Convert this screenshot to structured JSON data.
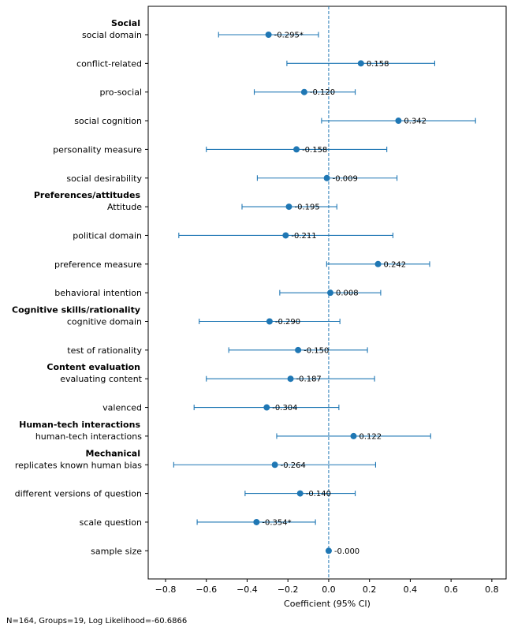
{
  "chart_data": {
    "type": "scatter",
    "subtype": "coefficient-plot-with-error-bars",
    "xlabel": "Coefficient (95% CI)",
    "xlim": [
      -0.885,
      0.87
    ],
    "xticks": [
      -0.8,
      -0.6,
      -0.4,
      -0.2,
      0.0,
      0.2,
      0.4,
      0.6,
      0.8
    ],
    "xtick_labels": [
      "−0.8",
      "−0.6",
      "−0.4",
      "−0.2",
      "0.0",
      "0.2",
      "0.4",
      "0.6",
      "0.8"
    ],
    "reference_line": 0.0,
    "footnote": "N=164, Groups=19, Log Likelihood=-60.6866",
    "marker_color": "#1f77b4",
    "rows": [
      {
        "group": "Social",
        "label": "social domain",
        "coef": -0.295,
        "lo": -0.54,
        "hi": -0.05,
        "annotation": "-0.295*"
      },
      {
        "group": "",
        "label": "conflict-related",
        "coef": 0.158,
        "lo": -0.205,
        "hi": 0.52,
        "annotation": "0.158"
      },
      {
        "group": "",
        "label": "pro-social",
        "coef": -0.12,
        "lo": -0.365,
        "hi": 0.13,
        "annotation": "-0.120"
      },
      {
        "group": "",
        "label": "social cognition",
        "coef": 0.342,
        "lo": -0.035,
        "hi": 0.72,
        "annotation": "0.342"
      },
      {
        "group": "",
        "label": "personality measure",
        "coef": -0.158,
        "lo": -0.6,
        "hi": 0.285,
        "annotation": "-0.158"
      },
      {
        "group": "",
        "label": "social desirability",
        "coef": -0.009,
        "lo": -0.35,
        "hi": 0.335,
        "annotation": "-0.009"
      },
      {
        "group": "Preferences/attitudes",
        "label": "Attitude",
        "coef": -0.195,
        "lo": -0.425,
        "hi": 0.04,
        "annotation": "-0.195"
      },
      {
        "group": "",
        "label": "political domain",
        "coef": -0.211,
        "lo": -0.735,
        "hi": 0.315,
        "annotation": "-0.211"
      },
      {
        "group": "",
        "label": "preference measure",
        "coef": 0.242,
        "lo": -0.01,
        "hi": 0.495,
        "annotation": "0.242"
      },
      {
        "group": "",
        "label": "behavioral intention",
        "coef": 0.008,
        "lo": -0.24,
        "hi": 0.255,
        "annotation": "0.008"
      },
      {
        "group": "Cognitive skills/rationality",
        "label": "cognitive domain",
        "coef": -0.29,
        "lo": -0.635,
        "hi": 0.055,
        "annotation": "-0.290"
      },
      {
        "group": "",
        "label": "test of rationality",
        "coef": -0.15,
        "lo": -0.49,
        "hi": 0.19,
        "annotation": "-0.150"
      },
      {
        "group": "Content evaluation",
        "label": "evaluating content",
        "coef": -0.187,
        "lo": -0.6,
        "hi": 0.225,
        "annotation": "-0.187"
      },
      {
        "group": "",
        "label": "valenced",
        "coef": -0.304,
        "lo": -0.66,
        "hi": 0.05,
        "annotation": "-0.304"
      },
      {
        "group": "Human-tech interactions",
        "label": "human-tech interactions",
        "coef": 0.122,
        "lo": -0.255,
        "hi": 0.5,
        "annotation": "0.122"
      },
      {
        "group": "Mechanical",
        "label": "replicates known human bias",
        "coef": -0.264,
        "lo": -0.76,
        "hi": 0.23,
        "annotation": "-0.264"
      },
      {
        "group": "",
        "label": "different versions of question",
        "coef": -0.14,
        "lo": -0.41,
        "hi": 0.13,
        "annotation": "-0.140"
      },
      {
        "group": "",
        "label": "scale question",
        "coef": -0.354,
        "lo": -0.645,
        "hi": -0.065,
        "annotation": "-0.354*"
      },
      {
        "group": "",
        "label": "sample size",
        "coef": 0.0,
        "lo": 0.0,
        "hi": 0.0,
        "annotation": "-0.000"
      }
    ]
  }
}
